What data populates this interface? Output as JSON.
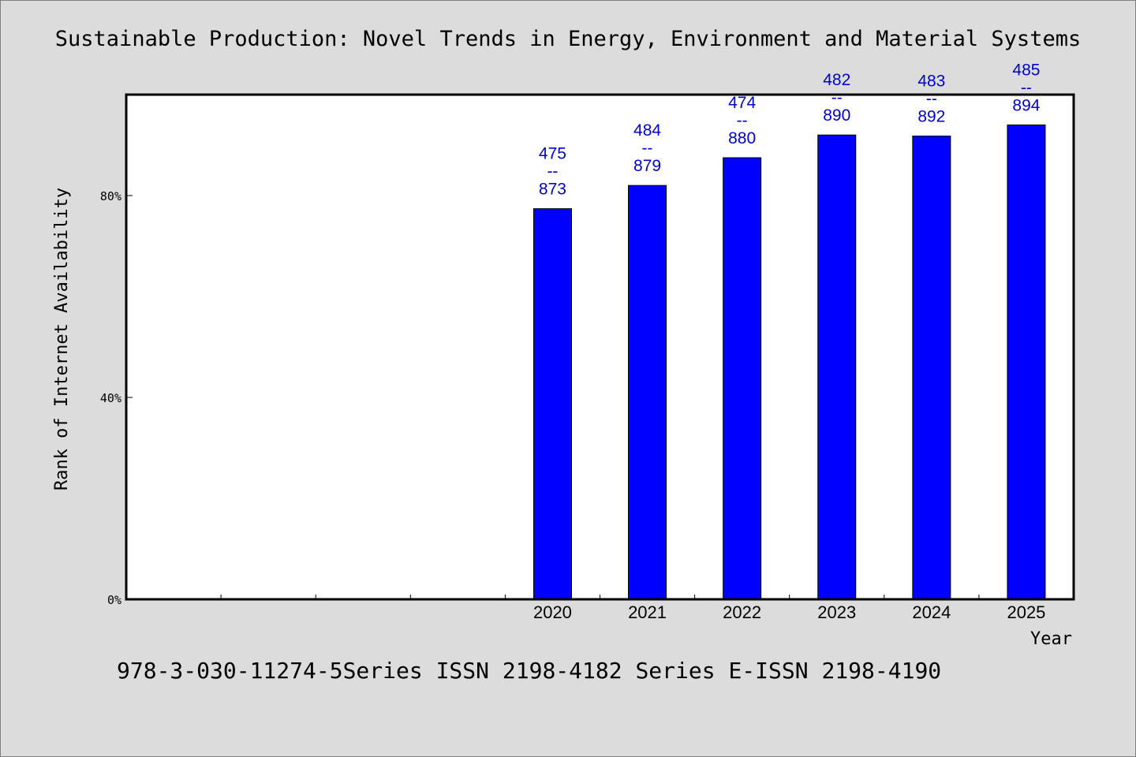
{
  "chart_data": {
    "type": "bar",
    "title": "Sustainable Production: Novel Trends in Energy, Environment and Material Systems",
    "xlabel": "Year",
    "ylabel": "Rank of Internet Availability",
    "categories": [
      "",
      "",
      "",
      "",
      "2020",
      "2021",
      "2022",
      "2023",
      "2024",
      "2025"
    ],
    "values": [
      null,
      null,
      null,
      null,
      77.4,
      82.0,
      87.5,
      92.0,
      91.8,
      94.0
    ],
    "data_labels": [
      null,
      null,
      null,
      null,
      {
        "top": "475",
        "sep": "--",
        "bottom": "873"
      },
      {
        "top": "484",
        "sep": "--",
        "bottom": "879"
      },
      {
        "top": "474",
        "sep": "--",
        "bottom": "880"
      },
      {
        "top": "482",
        "sep": "--",
        "bottom": "890"
      },
      {
        "top": "483",
        "sep": "--",
        "bottom": "892"
      },
      {
        "top": "485",
        "sep": "--",
        "bottom": "894"
      }
    ],
    "ylim": [
      0,
      100
    ],
    "yticks": [
      {
        "value": 0,
        "label": "0%"
      },
      {
        "value": 40,
        "label": "40%"
      },
      {
        "value": 80,
        "label": "80%"
      }
    ],
    "grid": false,
    "colors": {
      "bar": "#0000ff",
      "label": "#0000cc",
      "background": "#ffffff",
      "frame": "#dcdcdc"
    }
  },
  "footer": {
    "text": "978-3-030-11274-5Series ISSN 2198-4182 Series E-ISSN 2198-4190"
  }
}
